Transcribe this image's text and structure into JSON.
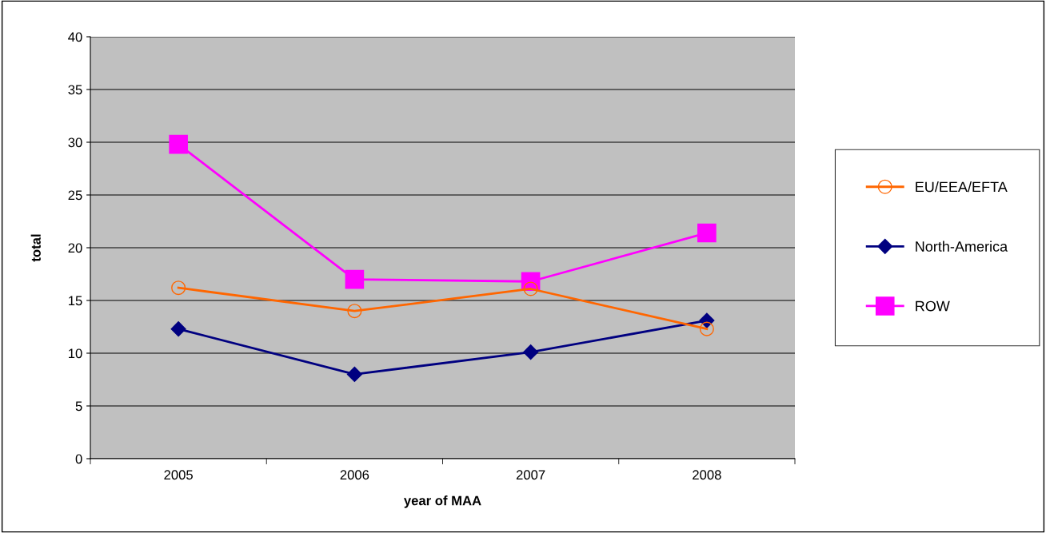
{
  "chart_data": {
    "type": "line",
    "xlabel": "year of MAA",
    "ylabel": "total",
    "categories": [
      "2005",
      "2006",
      "2007",
      "2008"
    ],
    "series": [
      {
        "name": "EU/EEA/EFTA",
        "color": "#ff6600",
        "marker": "circle",
        "values": [
          16.2,
          14.0,
          16.1,
          12.3
        ]
      },
      {
        "name": "North-America",
        "color": "#000080",
        "marker": "diamond",
        "values": [
          12.3,
          8.0,
          10.1,
          13.1
        ]
      },
      {
        "name": "ROW",
        "color": "#ff00ff",
        "marker": "square",
        "values": [
          29.8,
          17.0,
          16.8,
          21.4
        ]
      }
    ],
    "ylim": [
      0,
      40
    ],
    "yticks": [
      0,
      5,
      10,
      15,
      20,
      25,
      30,
      35,
      40
    ],
    "grid": "y",
    "legend": "right"
  }
}
